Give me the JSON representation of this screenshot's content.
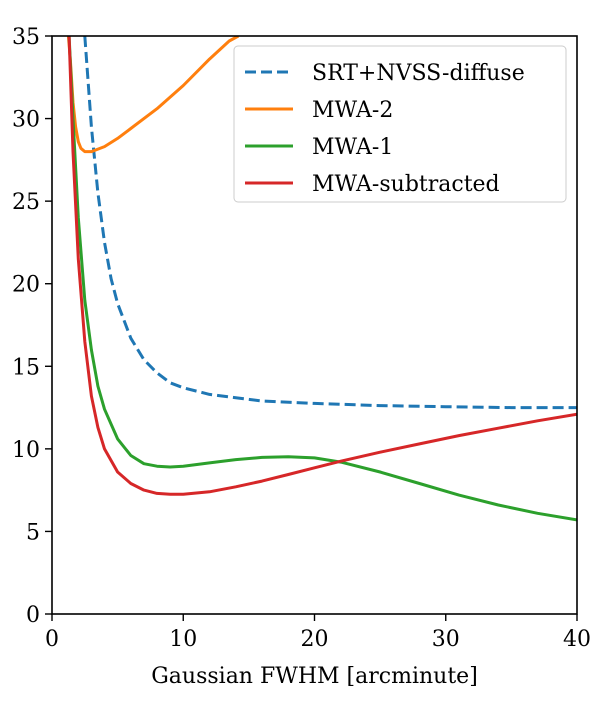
{
  "chart_data": {
    "type": "line",
    "xlabel": "Gaussian FWHM [arcminute]",
    "ylabel": "",
    "xlim": [
      0,
      40
    ],
    "ylim": [
      0,
      35
    ],
    "xticks": [
      0,
      10,
      20,
      30,
      40
    ],
    "yticks": [
      0,
      5,
      10,
      15,
      20,
      25,
      30,
      35
    ],
    "grid": false,
    "legend_position": "top-right",
    "series": [
      {
        "name": "SRT+NVSS-diffuse",
        "color": "#1f77b4",
        "linestyle": "dashed",
        "x": [
          2.5,
          3,
          3.5,
          4,
          4.5,
          5,
          6,
          7,
          8,
          9,
          10,
          12,
          14,
          16,
          20,
          25,
          30,
          35,
          40
        ],
        "y": [
          35,
          29.5,
          25.5,
          22.5,
          20.3,
          18.8,
          16.7,
          15.4,
          14.6,
          14.0,
          13.7,
          13.3,
          13.1,
          12.9,
          12.75,
          12.62,
          12.55,
          12.5,
          12.5
        ]
      },
      {
        "name": "MWA-2",
        "color": "#ff7f0e",
        "linestyle": "solid",
        "x": [
          1.25,
          1.4,
          1.6,
          1.8,
          2.0,
          2.2,
          2.5,
          3,
          4,
          5,
          6,
          8,
          10,
          12,
          13.5,
          14.2
        ],
        "y": [
          35,
          33.5,
          31,
          29.5,
          28.6,
          28.2,
          28.0,
          28.0,
          28.3,
          28.8,
          29.4,
          30.6,
          32.0,
          33.6,
          34.7,
          35
        ]
      },
      {
        "name": "MWA-1",
        "color": "#2ca02c",
        "linestyle": "solid",
        "x": [
          1.3,
          1.6,
          2,
          2.5,
          3,
          3.5,
          4,
          5,
          6,
          7,
          8,
          9,
          10,
          12,
          14,
          16,
          18,
          20,
          22,
          25,
          28,
          31,
          34,
          37,
          40
        ],
        "y": [
          35,
          30,
          24,
          19,
          16,
          13.8,
          12.4,
          10.6,
          9.6,
          9.1,
          8.95,
          8.9,
          8.95,
          9.15,
          9.35,
          9.48,
          9.52,
          9.45,
          9.2,
          8.6,
          7.9,
          7.2,
          6.6,
          6.1,
          5.7
        ]
      },
      {
        "name": "MWA-subtracted",
        "color": "#d62728",
        "linestyle": "solid",
        "x": [
          1.3,
          1.6,
          2,
          2.5,
          3,
          3.5,
          4,
          5,
          6,
          7,
          8,
          9,
          10,
          12,
          14,
          16,
          18,
          20,
          22,
          25,
          28,
          31,
          34,
          37,
          40
        ],
        "y": [
          35,
          28,
          21.5,
          16.5,
          13.2,
          11.3,
          10.0,
          8.6,
          7.9,
          7.5,
          7.3,
          7.25,
          7.25,
          7.4,
          7.7,
          8.05,
          8.45,
          8.85,
          9.25,
          9.8,
          10.3,
          10.8,
          11.25,
          11.7,
          12.1
        ]
      }
    ]
  }
}
